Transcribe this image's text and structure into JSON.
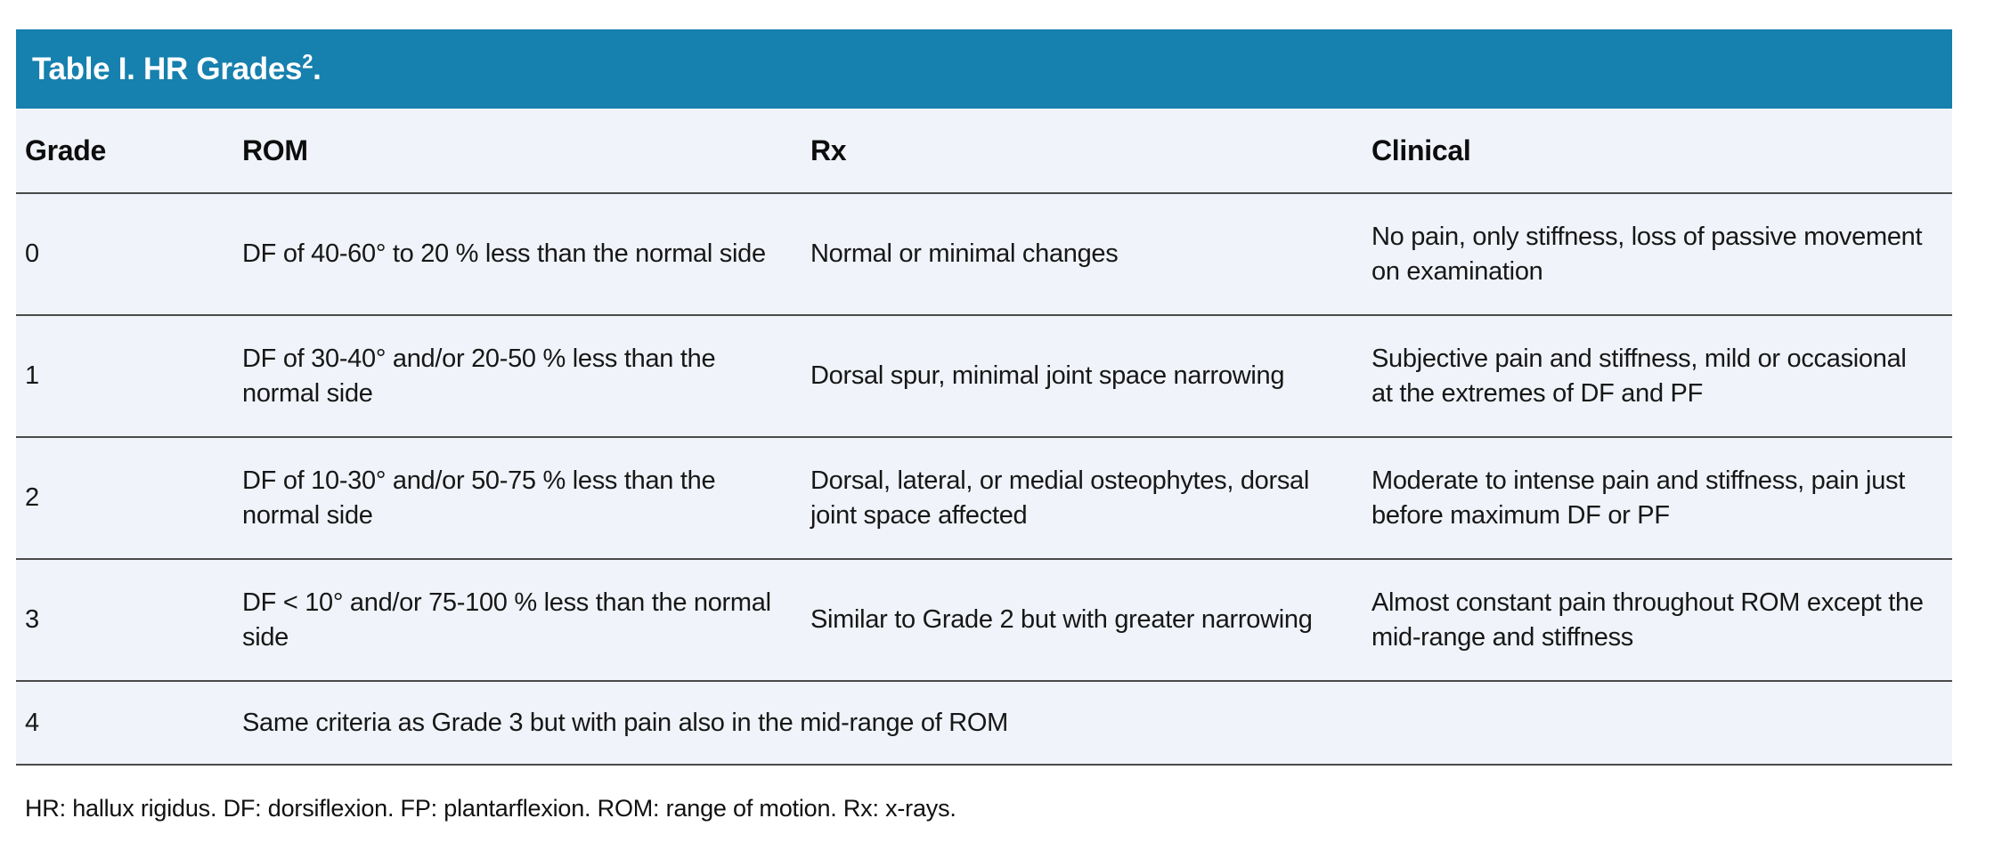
{
  "table": {
    "title": "Table I. HR Grades",
    "title_superscript": "2",
    "title_suffix": ".",
    "columns": [
      "Grade",
      "ROM",
      "Rx",
      "Clinical"
    ],
    "rows": [
      {
        "grade": "0",
        "rom": "DF of 40-60° to 20 % less than the normal side",
        "rx": "Normal or minimal changes",
        "clinical": "No pain, only stiffness, loss of passive movement on examination"
      },
      {
        "grade": "1",
        "rom": "DF of 30-40° and/or 20-50 % less than the normal side",
        "rx": "Dorsal spur, minimal joint space narrowing",
        "clinical": "Subjective pain and stiffness, mild or occasional at the extremes of DF and PF"
      },
      {
        "grade": "2",
        "rom": "DF of 10-30° and/or 50-75 % less than the normal side",
        "rx": "Dorsal, lateral, or medial osteophytes, dorsal joint space affected",
        "clinical": "Moderate to intense pain and stiffness, pain just before maximum DF or PF"
      },
      {
        "grade": "3",
        "rom": "DF < 10° and/or 75-100 % less than the normal side",
        "rx": "Similar to Grade 2 but with greater narrowing",
        "clinical": "Almost constant pain throughout ROM except the mid-range and stiffness"
      },
      {
        "grade": "4",
        "span": "Same criteria as Grade 3 but with pain also in the mid-range of ROM"
      }
    ],
    "footnote": "HR: hallux rigidus. DF: dorsiflexion. FP: plantarflexion. ROM: range of motion. Rx: x-rays.",
    "colors": {
      "header_bg": "#1680ae",
      "body_bg": "#f0f3f9",
      "row_border": "#4a4a4a",
      "header_text": "#ffffff",
      "body_text": "#171717"
    }
  }
}
